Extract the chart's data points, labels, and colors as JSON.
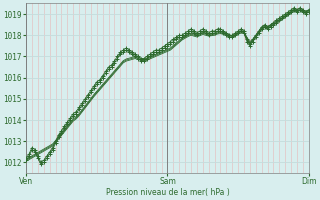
{
  "title": "",
  "xlabel": "Pression niveau de la mer( hPa )",
  "bg_color": "#d8eeee",
  "line_color": "#2d6a2d",
  "ylim": [
    1011.5,
    1019.5
  ],
  "yticks": [
    1012,
    1013,
    1014,
    1015,
    1016,
    1017,
    1018,
    1019
  ],
  "xtick_labels": [
    "Ven",
    "Sam",
    "Dim"
  ],
  "xtick_positions": [
    0,
    48,
    96
  ],
  "total_points": 97,
  "lines_with_markers": [
    [
      1012.1,
      1012.3,
      1012.6,
      1012.5,
      1012.2,
      1011.9,
      1012.0,
      1012.2,
      1012.4,
      1012.6,
      1012.9,
      1013.2,
      1013.4,
      1013.6,
      1013.8,
      1014.0,
      1014.2,
      1014.3,
      1014.5,
      1014.7,
      1014.9,
      1015.1,
      1015.3,
      1015.5,
      1015.7,
      1015.8,
      1016.0,
      1016.2,
      1016.4,
      1016.5,
      1016.7,
      1016.9,
      1017.1,
      1017.2,
      1017.3,
      1017.2,
      1017.1,
      1017.0,
      1016.9,
      1016.8,
      1016.8,
      1016.9,
      1017.0,
      1017.1,
      1017.2,
      1017.2,
      1017.3,
      1017.4,
      1017.5,
      1017.6,
      1017.7,
      1017.8,
      1017.9,
      1017.9,
      1018.0,
      1018.1,
      1018.2,
      1018.1,
      1018.0,
      1018.1,
      1018.2,
      1018.1,
      1018.0,
      1018.1,
      1018.1,
      1018.2,
      1018.2,
      1018.1,
      1018.0,
      1017.9,
      1017.9,
      1018.0,
      1018.1,
      1018.2,
      1018.1,
      1017.7,
      1017.5,
      1017.7,
      1017.9,
      1018.1,
      1018.3,
      1018.4,
      1018.3,
      1018.4,
      1018.5,
      1018.6,
      1018.7,
      1018.8,
      1018.9,
      1019.0,
      1019.1,
      1019.2,
      1019.1,
      1019.2,
      1019.1,
      1019.0,
      1019.1
    ],
    [
      1012.2,
      1012.4,
      1012.7,
      1012.6,
      1012.3,
      1012.0,
      1012.1,
      1012.3,
      1012.5,
      1012.7,
      1013.0,
      1013.3,
      1013.5,
      1013.7,
      1013.9,
      1014.1,
      1014.3,
      1014.4,
      1014.6,
      1014.8,
      1015.0,
      1015.2,
      1015.4,
      1015.6,
      1015.8,
      1015.9,
      1016.1,
      1016.3,
      1016.5,
      1016.6,
      1016.8,
      1017.0,
      1017.2,
      1017.3,
      1017.4,
      1017.3,
      1017.2,
      1017.1,
      1017.0,
      1016.9,
      1016.9,
      1017.0,
      1017.1,
      1017.2,
      1017.3,
      1017.3,
      1017.4,
      1017.5,
      1017.6,
      1017.7,
      1017.8,
      1017.9,
      1018.0,
      1018.0,
      1018.1,
      1018.2,
      1018.3,
      1018.2,
      1018.1,
      1018.2,
      1018.3,
      1018.2,
      1018.1,
      1018.2,
      1018.2,
      1018.3,
      1018.3,
      1018.2,
      1018.1,
      1018.0,
      1018.0,
      1018.1,
      1018.2,
      1018.3,
      1018.2,
      1017.8,
      1017.6,
      1017.8,
      1018.0,
      1018.2,
      1018.4,
      1018.5,
      1018.4,
      1018.5,
      1018.6,
      1018.7,
      1018.8,
      1018.9,
      1019.0,
      1019.1,
      1019.2,
      1019.3,
      1019.2,
      1019.3,
      1019.2,
      1019.1,
      1019.2
    ]
  ],
  "lines_smooth": [
    [
      1012.05,
      1012.13,
      1012.21,
      1012.29,
      1012.37,
      1012.45,
      1012.53,
      1012.61,
      1012.69,
      1012.77,
      1012.93,
      1013.1,
      1013.27,
      1013.44,
      1013.61,
      1013.78,
      1013.95,
      1014.05,
      1014.2,
      1014.38,
      1014.56,
      1014.74,
      1014.92,
      1015.1,
      1015.26,
      1015.42,
      1015.58,
      1015.74,
      1015.9,
      1016.06,
      1016.22,
      1016.38,
      1016.54,
      1016.7,
      1016.78,
      1016.82,
      1016.86,
      1016.9,
      1016.86,
      1016.82,
      1016.78,
      1016.82,
      1016.88,
      1016.94,
      1017.0,
      1017.06,
      1017.12,
      1017.18,
      1017.24,
      1017.3,
      1017.42,
      1017.54,
      1017.66,
      1017.78,
      1017.86,
      1017.94,
      1018.0,
      1017.96,
      1017.92,
      1017.98,
      1018.04,
      1018.0,
      1017.96,
      1017.98,
      1018.0,
      1018.06,
      1018.08,
      1018.04,
      1018.0,
      1017.92,
      1017.88,
      1017.96,
      1018.04,
      1018.12,
      1018.08,
      1017.8,
      1017.6,
      1017.72,
      1017.9,
      1018.08,
      1018.26,
      1018.36,
      1018.3,
      1018.38,
      1018.48,
      1018.56,
      1018.64,
      1018.74,
      1018.84,
      1018.94,
      1019.04,
      1019.14,
      1019.1,
      1019.16,
      1019.1,
      1019.04,
      1019.1
    ],
    [
      1012.1,
      1012.18,
      1012.26,
      1012.34,
      1012.42,
      1012.5,
      1012.58,
      1012.66,
      1012.74,
      1012.82,
      1012.98,
      1013.15,
      1013.32,
      1013.49,
      1013.66,
      1013.83,
      1014.0,
      1014.1,
      1014.25,
      1014.43,
      1014.61,
      1014.79,
      1014.97,
      1015.15,
      1015.31,
      1015.47,
      1015.63,
      1015.79,
      1015.95,
      1016.11,
      1016.27,
      1016.43,
      1016.59,
      1016.75,
      1016.83,
      1016.87,
      1016.91,
      1016.95,
      1016.91,
      1016.87,
      1016.83,
      1016.87,
      1016.93,
      1016.99,
      1017.05,
      1017.11,
      1017.17,
      1017.23,
      1017.29,
      1017.35,
      1017.47,
      1017.59,
      1017.71,
      1017.83,
      1017.91,
      1017.99,
      1018.05,
      1018.01,
      1017.97,
      1018.03,
      1018.09,
      1018.05,
      1018.01,
      1018.03,
      1018.05,
      1018.11,
      1018.13,
      1018.09,
      1018.05,
      1017.97,
      1017.93,
      1018.01,
      1018.09,
      1018.17,
      1018.13,
      1017.85,
      1017.65,
      1017.77,
      1017.95,
      1018.13,
      1018.31,
      1018.41,
      1018.35,
      1018.43,
      1018.53,
      1018.61,
      1018.69,
      1018.79,
      1018.89,
      1018.99,
      1019.09,
      1019.19,
      1019.15,
      1019.21,
      1019.15,
      1019.09,
      1019.15
    ],
    [
      1012.15,
      1012.23,
      1012.31,
      1012.39,
      1012.47,
      1012.55,
      1012.63,
      1012.71,
      1012.79,
      1012.87,
      1013.03,
      1013.2,
      1013.37,
      1013.54,
      1013.71,
      1013.88,
      1014.05,
      1014.15,
      1014.3,
      1014.48,
      1014.66,
      1014.84,
      1015.02,
      1015.2,
      1015.36,
      1015.52,
      1015.68,
      1015.84,
      1016.0,
      1016.16,
      1016.32,
      1016.48,
      1016.64,
      1016.8,
      1016.88,
      1016.92,
      1016.96,
      1017.0,
      1016.96,
      1016.92,
      1016.88,
      1016.92,
      1016.98,
      1017.04,
      1017.1,
      1017.16,
      1017.22,
      1017.28,
      1017.34,
      1017.4,
      1017.52,
      1017.64,
      1017.76,
      1017.88,
      1017.96,
      1018.04,
      1018.1,
      1018.06,
      1018.02,
      1018.08,
      1018.14,
      1018.1,
      1018.06,
      1018.08,
      1018.1,
      1018.16,
      1018.18,
      1018.14,
      1018.1,
      1018.02,
      1017.98,
      1018.06,
      1018.14,
      1018.22,
      1018.18,
      1017.9,
      1017.7,
      1017.82,
      1018.0,
      1018.18,
      1018.36,
      1018.46,
      1018.4,
      1018.48,
      1018.58,
      1018.66,
      1018.74,
      1018.84,
      1018.94,
      1019.04,
      1019.14,
      1019.24,
      1019.2,
      1019.26,
      1019.2,
      1019.14,
      1019.2
    ]
  ]
}
